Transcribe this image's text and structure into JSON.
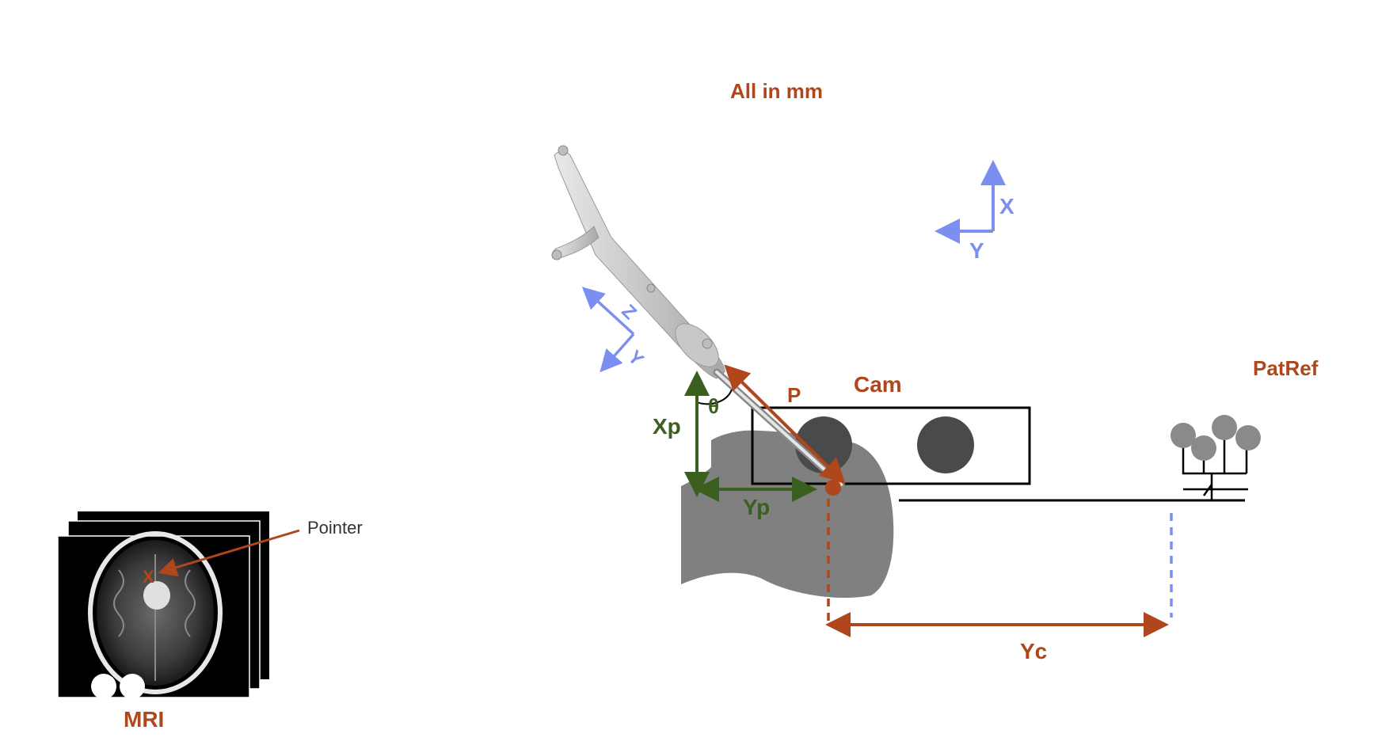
{
  "labels": {
    "units_note": "All in mm",
    "world_x": "X",
    "world_y": "Y",
    "pointer_z": "Z",
    "pointer_y": "Y",
    "p": "P",
    "theta": "θ",
    "cam": "Cam",
    "xp": "Xp",
    "yp": "Yp",
    "patref": "PatRef",
    "yc": "Yc",
    "pointer": "Pointer",
    "mri_x": "X",
    "mri": "MRI"
  },
  "colors": {
    "rust": "#b0461c",
    "green": "#3a5f1e",
    "blue": "#7b8ff0",
    "gray_blob": "#808080",
    "dark_gray": "#4a4a4a",
    "black": "#000000"
  }
}
